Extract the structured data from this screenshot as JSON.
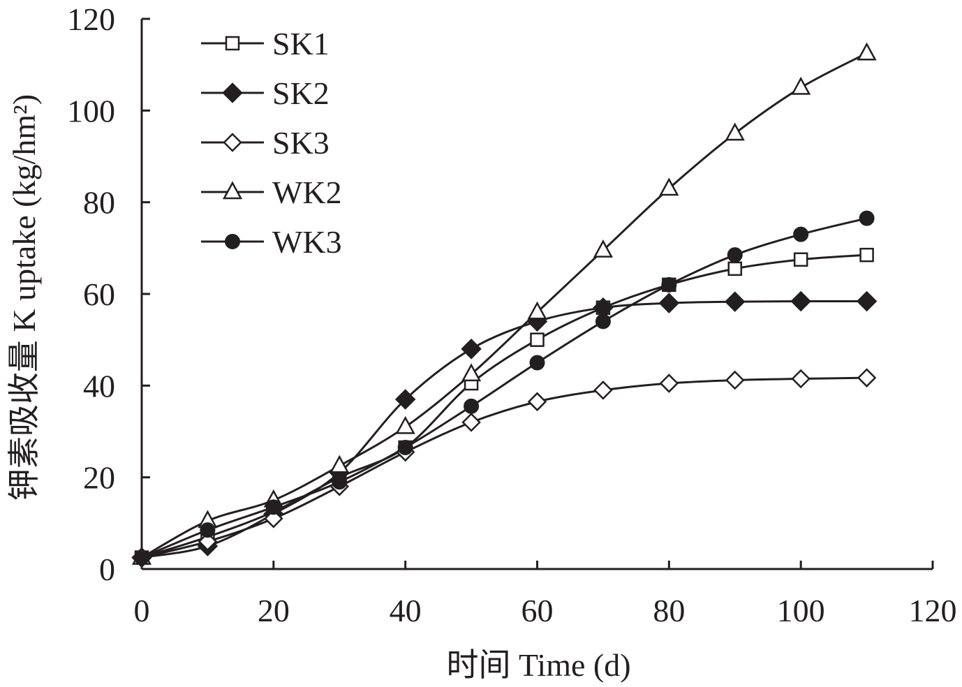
{
  "chart_data": {
    "type": "line",
    "xlabel": "时间 Time (d)",
    "ylabel": "钾素吸收量 K uptake (kg/hm²)",
    "xlim": [
      0,
      120
    ],
    "ylim": [
      0,
      120
    ],
    "xticks": [
      0,
      20,
      40,
      60,
      80,
      100,
      120
    ],
    "yticks": [
      0,
      20,
      40,
      60,
      80,
      100,
      120
    ],
    "grid": false,
    "legend_position": "top-left",
    "x": [
      0,
      10,
      20,
      30,
      40,
      50,
      60,
      70,
      80,
      90,
      100,
      110
    ],
    "series": [
      {
        "name": "SK1",
        "marker": "square-open",
        "values": [
          2.5,
          7,
          12.5,
          20,
          26.5,
          40.5,
          50,
          57,
          62,
          65.5,
          67.5,
          68.5
        ]
      },
      {
        "name": "SK2",
        "marker": "diamond-filled",
        "values": [
          2.5,
          5,
          12,
          21,
          37,
          48,
          54,
          57,
          58,
          58.3,
          58.4,
          58.4
        ]
      },
      {
        "name": "SK3",
        "marker": "diamond-open",
        "values": [
          2.5,
          6,
          11,
          18,
          25.5,
          32,
          36.5,
          39,
          40.5,
          41.2,
          41.5,
          41.7
        ]
      },
      {
        "name": "WK2",
        "marker": "triangle-open",
        "values": [
          2.5,
          10.5,
          15,
          22.5,
          31,
          42.5,
          56,
          69.5,
          83,
          95,
          105,
          112.5
        ]
      },
      {
        "name": "WK3",
        "marker": "circle-filled",
        "values": [
          2.5,
          8.5,
          13.5,
          19,
          26.5,
          35.5,
          45,
          54,
          62,
          68.5,
          73,
          76.5
        ]
      }
    ]
  }
}
